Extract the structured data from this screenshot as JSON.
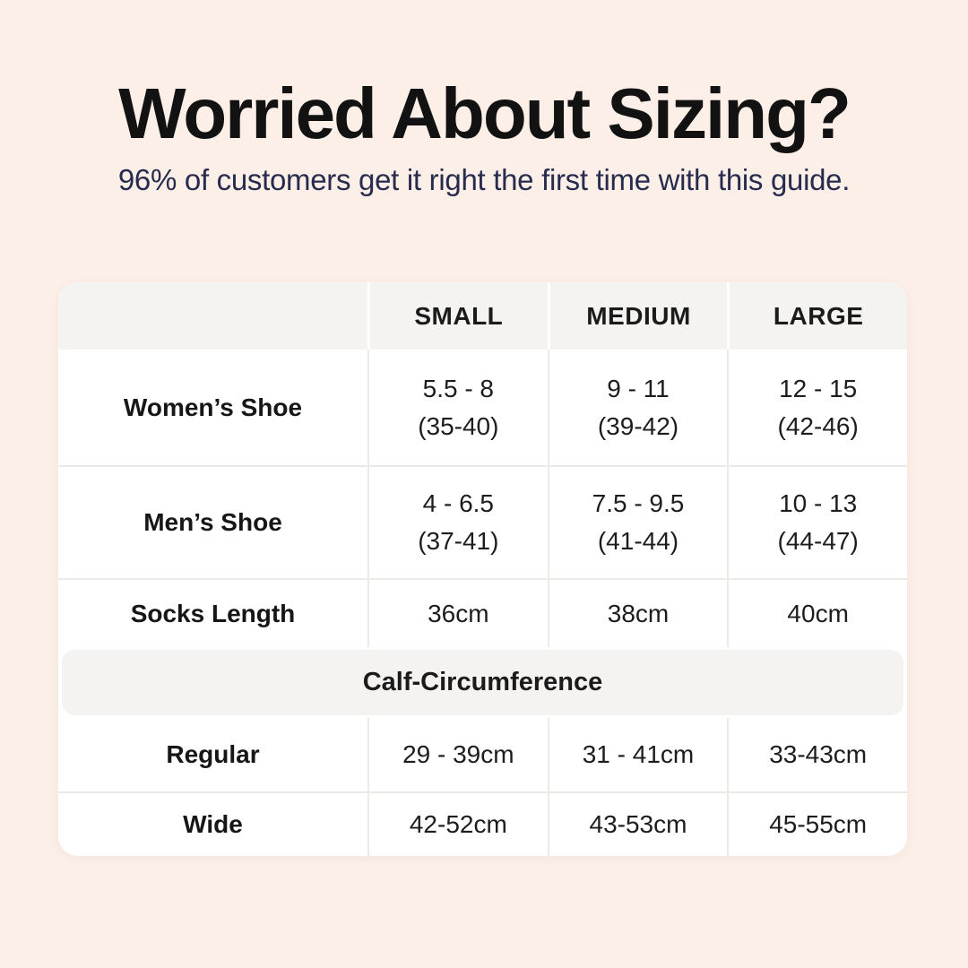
{
  "colors": {
    "background": "#fcefe8",
    "card": "#ffffff",
    "band": "#f4f3f1",
    "divider": "#eceae7",
    "title_text": "#121212",
    "subtitle_text": "#272c4f",
    "cell_text": "#1d1d1d"
  },
  "header": {
    "title": "Worried About Sizing?",
    "subtitle": "96% of customers get it right the first time with this guide."
  },
  "table": {
    "columns": [
      "",
      "SMALL",
      "MEDIUM",
      "LARGE"
    ],
    "rows": [
      {
        "label": "Women’s Shoe",
        "cells": [
          {
            "l1": "5.5 - 8",
            "l2": "(35-40)"
          },
          {
            "l1": "9 - 11",
            "l2": "(39-42)"
          },
          {
            "l1": "12 - 15",
            "l2": "(42-46)"
          }
        ]
      },
      {
        "label": "Men’s Shoe",
        "cells": [
          {
            "l1": "4 - 6.5",
            "l2": "(37-41)"
          },
          {
            "l1": "7.5 - 9.5",
            "l2": "(41-44)"
          },
          {
            "l1": "10 - 13",
            "l2": "(44-47)"
          }
        ]
      },
      {
        "label": "Socks Length",
        "cells": [
          {
            "l1": "36cm"
          },
          {
            "l1": "38cm"
          },
          {
            "l1": "40cm"
          }
        ]
      }
    ],
    "section_header": "Calf-Circumference",
    "section_rows": [
      {
        "label": "Regular",
        "cells": [
          {
            "l1": "29 - 39cm"
          },
          {
            "l1": "31 - 41cm"
          },
          {
            "l1": "33-43cm"
          }
        ]
      },
      {
        "label": "Wide",
        "cells": [
          {
            "l1": "42-52cm"
          },
          {
            "l1": "43-53cm"
          },
          {
            "l1": "45-55cm"
          }
        ]
      }
    ]
  },
  "chart_data": {
    "type": "table",
    "title": "Worried About Sizing?",
    "subtitle": "96% of customers get it right the first time with this guide.",
    "columns": [
      "",
      "SMALL",
      "MEDIUM",
      "LARGE"
    ],
    "rows": [
      [
        "Women’s Shoe",
        "5.5 - 8 (35-40)",
        "9 - 11 (39-42)",
        "12 - 15 (42-46)"
      ],
      [
        "Men’s Shoe",
        "4 - 6.5 (37-41)",
        "7.5 - 9.5 (41-44)",
        "10 - 13 (44-47)"
      ],
      [
        "Socks Length",
        "36cm",
        "38cm",
        "40cm"
      ],
      [
        "Calf-Circumference",
        "",
        "",
        ""
      ],
      [
        "Regular",
        "29 - 39cm",
        "31 - 41cm",
        "33-43cm"
      ],
      [
        "Wide",
        "42-52cm",
        "43-53cm",
        "45-55cm"
      ]
    ]
  }
}
